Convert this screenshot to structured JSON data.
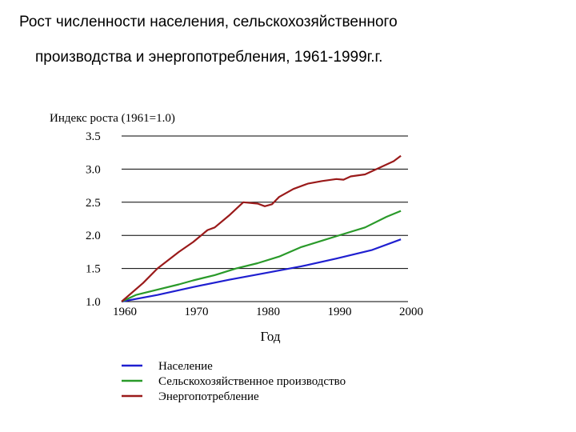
{
  "title_line1": "Рост численности населения, сельскохозяйственного",
  "title_line2": "производства и энергопотребления, 1961-1999г.г.",
  "chart_data": {
    "type": "line",
    "ylabel": "Индекс роста (1961=1.0)",
    "xlabel": "Год",
    "xlim": [
      1960,
      2000
    ],
    "ylim": [
      1.0,
      3.5
    ],
    "xticks": [
      "1960",
      "1970",
      "1980",
      "1990",
      "2000"
    ],
    "yticks": [
      "1.0",
      "1.5",
      "2.0",
      "2.5",
      "3.0",
      "3.5"
    ],
    "grid": "horizontal",
    "legend_position": "bottom",
    "series": [
      {
        "name": "Население",
        "color": "#1f1fd0",
        "x": [
          1960,
          1965,
          1970,
          1975,
          1980,
          1985,
          1990,
          1995,
          1999
        ],
        "y": [
          1.0,
          1.1,
          1.22,
          1.33,
          1.43,
          1.53,
          1.65,
          1.78,
          1.94
        ]
      },
      {
        "name": "Сельскохозяйственное производство",
        "color": "#2a9a2a",
        "x": [
          1960,
          1962,
          1965,
          1968,
          1970,
          1973,
          1976,
          1979,
          1982,
          1985,
          1988,
          1991,
          1994,
          1997,
          1999
        ],
        "y": [
          1.0,
          1.1,
          1.18,
          1.26,
          1.32,
          1.4,
          1.5,
          1.58,
          1.68,
          1.82,
          1.92,
          2.02,
          2.12,
          2.28,
          2.37
        ]
      },
      {
        "name": "Энергопотребление",
        "color": "#9a1a1a",
        "x": [
          1960,
          1963,
          1965,
          1968,
          1970,
          1972,
          1973,
          1975,
          1977,
          1979,
          1980,
          1981,
          1982,
          1984,
          1986,
          1988,
          1990,
          1991,
          1992,
          1994,
          1996,
          1998,
          1999
        ],
        "y": [
          1.0,
          1.28,
          1.5,
          1.75,
          1.9,
          2.08,
          2.12,
          2.3,
          2.5,
          2.48,
          2.44,
          2.47,
          2.58,
          2.7,
          2.78,
          2.82,
          2.85,
          2.84,
          2.89,
          2.92,
          3.02,
          3.12,
          3.2
        ]
      }
    ]
  }
}
